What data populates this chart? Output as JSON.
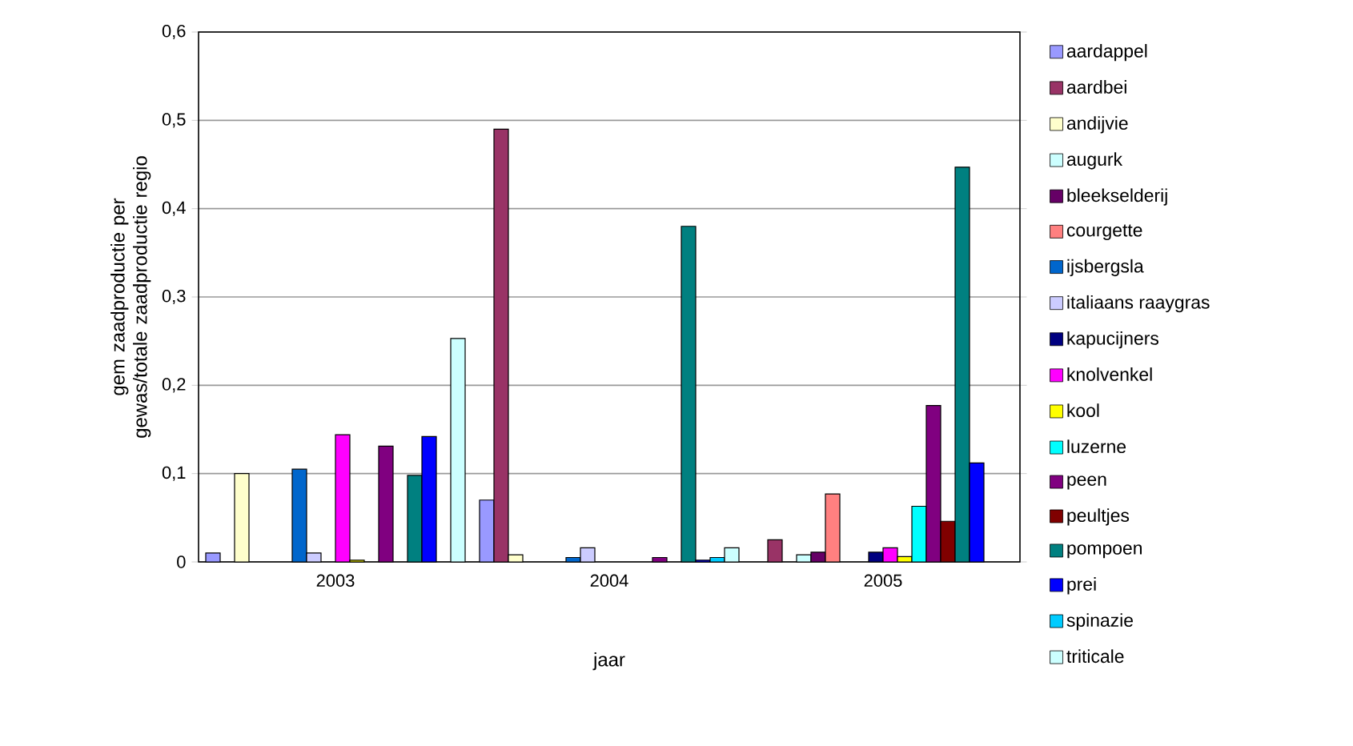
{
  "chart_data": {
    "type": "bar",
    "xlabel": "jaar",
    "ylabel": "gem zaadproductie per gewas/totale zaadproductie regio",
    "categories": [
      "2003",
      "2004",
      "2005"
    ],
    "series": [
      {
        "name": "aardappel",
        "color": "#9999ff",
        "values": [
          0.01,
          0.07,
          0
        ]
      },
      {
        "name": "aardbei",
        "color": "#993366",
        "values": [
          0,
          0.49,
          0.025
        ]
      },
      {
        "name": "andijvie",
        "color": "#ffffcc",
        "values": [
          0.1,
          0.008,
          0
        ]
      },
      {
        "name": "augurk",
        "color": "#ccffff",
        "values": [
          0,
          0,
          0.008
        ]
      },
      {
        "name": "bleekselderij",
        "color": "#660066",
        "values": [
          0,
          0,
          0.011
        ]
      },
      {
        "name": "courgette",
        "color": "#ff8080",
        "values": [
          0,
          0,
          0.077
        ]
      },
      {
        "name": "ijsbergsla",
        "color": "#0066cc",
        "values": [
          0.105,
          0.005,
          0
        ]
      },
      {
        "name": "italiaans raaygras",
        "color": "#ccccff",
        "values": [
          0.01,
          0.016,
          0
        ]
      },
      {
        "name": "kapucijners",
        "color": "#000080",
        "values": [
          0,
          0,
          0.011
        ]
      },
      {
        "name": "knolvenkel",
        "color": "#ff00ff",
        "values": [
          0.144,
          0,
          0.016
        ]
      },
      {
        "name": "kool",
        "color": "#ffff00",
        "values": [
          0.002,
          0,
          0.006
        ]
      },
      {
        "name": "luzerne",
        "color": "#00ffff",
        "values": [
          0,
          0,
          0.063
        ]
      },
      {
        "name": "peen",
        "color": "#800080",
        "values": [
          0.131,
          0.005,
          0.177
        ]
      },
      {
        "name": "peultjes",
        "color": "#800000",
        "values": [
          0,
          0,
          0.046
        ]
      },
      {
        "name": "pompoen",
        "color": "#008080",
        "values": [
          0.098,
          0.38,
          0.447
        ]
      },
      {
        "name": "prei",
        "color": "#0000ff",
        "values": [
          0.142,
          0.002,
          0.112
        ]
      },
      {
        "name": "spinazie",
        "color": "#00ccff",
        "values": [
          0,
          0.005,
          0
        ]
      },
      {
        "name": "triticale",
        "color": "#ccffff",
        "values": [
          0.253,
          0.016,
          0
        ]
      }
    ],
    "ylim": [
      0,
      0.6
    ],
    "yticks": [
      0,
      {
        "value": 0.1,
        "label": "0,1"
      },
      {
        "value": 0.2,
        "label": "0,2"
      },
      {
        "value": 0.3,
        "label": "0,3"
      },
      {
        "value": 0.4,
        "label": "0,4"
      },
      {
        "value": 0.5,
        "label": "0,5"
      },
      {
        "value": 0.6,
        "label": "0,6"
      }
    ],
    "grid": "y",
    "legend": "right"
  }
}
